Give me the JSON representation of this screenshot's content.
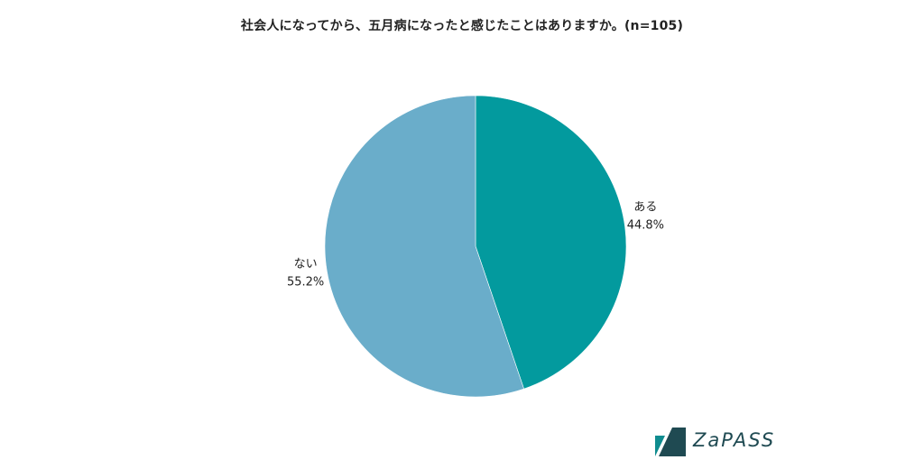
{
  "chart_data": {
    "type": "pie",
    "title": "社会人になってから、五月病になったと感じたことはありますか。(n=105)",
    "slices": [
      {
        "label": "ある",
        "value": 44.8,
        "value_label": "44.8%",
        "color": "#039a9e"
      },
      {
        "label": "ない",
        "value": 55.2,
        "value_label": "55.2%",
        "color": "#6aadca"
      }
    ],
    "start_angle": "12 o'clock",
    "direction": "clockwise",
    "legend": "none"
  },
  "logo": {
    "text": "ZaPASS",
    "mark_colors": [
      "#0f8c8f",
      "#1f4a52"
    ]
  }
}
